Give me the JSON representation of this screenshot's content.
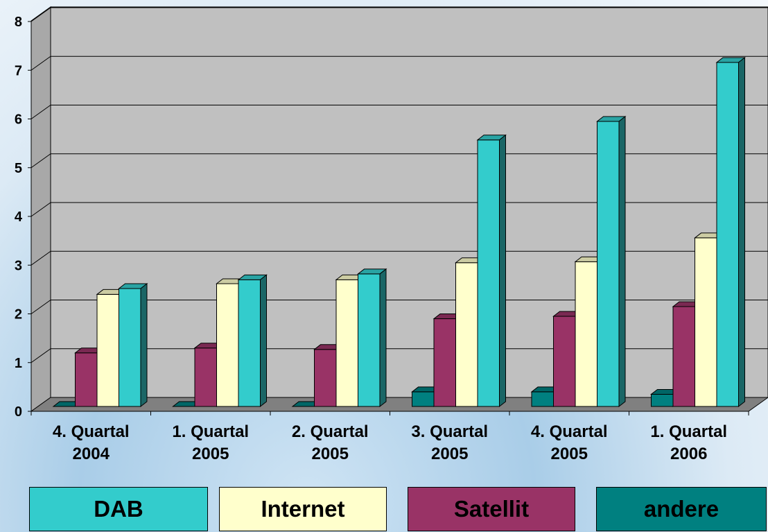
{
  "chart_data": {
    "type": "bar",
    "categories": [
      [
        "4. Quartal",
        "2004"
      ],
      [
        "1. Quartal",
        "2005"
      ],
      [
        "2. Quartal",
        "2005"
      ],
      [
        "3. Quartal",
        "2005"
      ],
      [
        "4. Quartal",
        "2005"
      ],
      [
        "1. Quartal",
        "2006"
      ]
    ],
    "series": [
      {
        "name": "andere",
        "color": "#008080",
        "values": [
          0,
          0,
          0,
          0.3,
          0.3,
          0.25
        ]
      },
      {
        "name": "Satellit",
        "color": "#993366",
        "values": [
          1.1,
          1.2,
          1.17,
          1.8,
          1.85,
          2.05
        ]
      },
      {
        "name": "Internet",
        "color": "#FFFFCC",
        "values": [
          2.3,
          2.52,
          2.6,
          2.95,
          2.97,
          3.46
        ]
      },
      {
        "name": "DAB",
        "color": "#33CCCC",
        "values": [
          2.42,
          2.6,
          2.72,
          5.47,
          5.85,
          7.06
        ]
      }
    ],
    "ylim": [
      0,
      8
    ],
    "yticks": [
      "0",
      "1",
      "2",
      "3",
      "4",
      "5",
      "6",
      "7",
      "8"
    ],
    "grid": true,
    "legend_position": "bottom",
    "title": "",
    "xlabel": "",
    "ylabel": ""
  }
}
